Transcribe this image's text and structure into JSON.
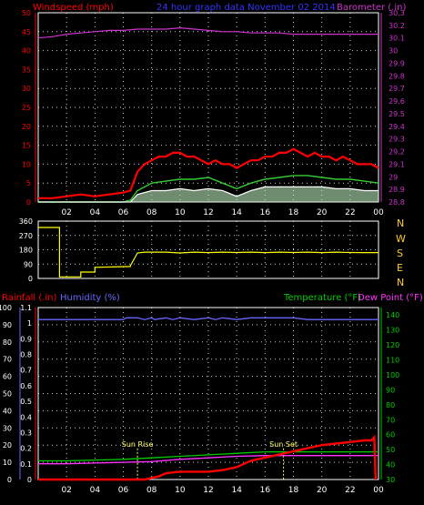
{
  "colors": {
    "background": "#000000",
    "frame": "#ffffff",
    "grid": "#ffffff",
    "axis_text": "#ffffff",
    "windspeed": "#ff0000",
    "gust_avg": "#33cc33",
    "wind_min": "#ffffff",
    "wind_fill": "#ccffcc",
    "barometer": "#cc33cc",
    "direction": "#ffff00",
    "rainfall": "#ff0000",
    "humidity": "#6666ff",
    "temperature": "#00cc00",
    "dewpoint": "#ff33ff",
    "sun_marker": "#ffff66",
    "compass": "#ffcc33"
  },
  "header": {
    "left_label": "Windspeed (mph)",
    "center_label": "24 hour graph data  November 02 2014",
    "right_label": "Barometer (.in)"
  },
  "compass": [
    "N",
    "W",
    "S",
    "E",
    "N"
  ],
  "bottom_header": {
    "rain_label": "Rainfall (.in)",
    "humidity_label": "Humidity (%)",
    "temp_label": "Temperature (°F)",
    "dew_label": "Dew Point (°F)"
  },
  "x_ticks": [
    "02",
    "04",
    "06",
    "08",
    "10",
    "12",
    "14",
    "16",
    "18",
    "20",
    "22",
    "00"
  ],
  "annotations": {
    "sunrise": "Sun Rise",
    "sunset": "Sun Set"
  },
  "chart_data": [
    {
      "type": "line",
      "panel": "wind_barometer",
      "x_unit": "hour",
      "xlim": [
        0,
        24
      ],
      "ylim": [
        0,
        50
      ],
      "yticks": [
        "0",
        "5",
        "10",
        "15",
        "20",
        "25",
        "30",
        "35",
        "40",
        "45",
        "50"
      ],
      "ylim_right": [
        28.8,
        30.3
      ],
      "yticks_right": [
        "28.8",
        "28.9",
        "29",
        "29.1",
        "29.2",
        "29.3",
        "29.4",
        "29.5",
        "29.6",
        "29.7",
        "29.8",
        "29.9",
        "30",
        "30.1",
        "30.2",
        "30.3"
      ],
      "grid": true,
      "series": [
        {
          "name": "Windspeed (mph)",
          "color_key": "windspeed",
          "x": [
            0,
            1,
            2,
            3,
            4,
            5,
            6,
            6.5,
            7,
            7.5,
            8,
            8.5,
            9,
            9.5,
            10,
            10.5,
            11,
            11.5,
            12,
            12.5,
            13,
            13.5,
            14,
            14.5,
            15,
            15.5,
            16,
            16.5,
            17,
            17.5,
            18,
            18.5,
            19,
            19.5,
            20,
            20.5,
            21,
            21.5,
            22,
            22.5,
            23,
            23.5,
            24
          ],
          "values": [
            1,
            1,
            1.5,
            2,
            1.5,
            2,
            2.5,
            3,
            8,
            10,
            11,
            12,
            12,
            13,
            13,
            12,
            12,
            11,
            10,
            11,
            10,
            10,
            9,
            10,
            11,
            11,
            12,
            12,
            13,
            13,
            14,
            13,
            12,
            13,
            12,
            12,
            11,
            12,
            11,
            10,
            10,
            10,
            9
          ]
        },
        {
          "name": "Wind Gust Avg",
          "color_key": "gust_avg",
          "x": [
            0,
            6,
            6.5,
            7,
            7.5,
            8,
            9,
            10,
            11,
            12,
            13,
            14,
            15,
            16,
            17,
            18,
            19,
            20,
            21,
            22,
            23,
            24
          ],
          "values": [
            0,
            0,
            0.5,
            3,
            4,
            5,
            5.5,
            6,
            6,
            6.5,
            5,
            3.5,
            5,
            6,
            6.5,
            7,
            7,
            6.5,
            6,
            6,
            5.5,
            5
          ]
        },
        {
          "name": "Wind Min",
          "color_key": "wind_min",
          "x": [
            0,
            6.5,
            7,
            8,
            9,
            10,
            11,
            12,
            13,
            14,
            15,
            16,
            17,
            18,
            19,
            20,
            21,
            22,
            23,
            24
          ],
          "values": [
            0,
            0,
            2,
            3,
            3,
            3.5,
            3,
            3.5,
            3,
            1.5,
            3,
            4,
            4,
            4,
            4,
            4,
            3.5,
            3.5,
            3,
            3
          ]
        },
        {
          "name": "Barometer (.in)",
          "color_key": "barometer",
          "axis": "right",
          "x": [
            0,
            1,
            2,
            3,
            4,
            5,
            6,
            7,
            8,
            9,
            10,
            11,
            12,
            13,
            14,
            15,
            16,
            17,
            18,
            19,
            20,
            21,
            22,
            23,
            24
          ],
          "values": [
            30.1,
            30.11,
            30.13,
            30.14,
            30.15,
            30.16,
            30.16,
            30.17,
            30.17,
            30.17,
            30.18,
            30.17,
            30.16,
            30.15,
            30.15,
            30.14,
            30.14,
            30.14,
            30.13,
            30.13,
            30.13,
            30.13,
            30.13,
            30.13,
            30.13
          ]
        }
      ]
    },
    {
      "type": "line",
      "panel": "wind_direction",
      "x_unit": "hour",
      "xlim": [
        0,
        24
      ],
      "ylim": [
        0,
        360
      ],
      "yticks": [
        "0",
        "90",
        "180",
        "270",
        "360"
      ],
      "grid": true,
      "series": [
        {
          "name": "Wind Direction",
          "color_key": "direction",
          "x": [
            0,
            1.5,
            1.5,
            3,
            3,
            4,
            4,
            6.5,
            6.5,
            7,
            7.5,
            9,
            10,
            11,
            12,
            13,
            14,
            15,
            16,
            17,
            18,
            19,
            20,
            21,
            22,
            23,
            24
          ],
          "values": [
            320,
            320,
            10,
            10,
            40,
            40,
            70,
            75,
            80,
            160,
            165,
            165,
            160,
            165,
            162,
            165,
            163,
            165,
            162,
            165,
            163,
            165,
            162,
            165,
            163,
            162,
            162
          ]
        }
      ]
    },
    {
      "type": "line",
      "panel": "rain_humidity_temperature",
      "x_unit": "hour",
      "xlim": [
        0,
        24
      ],
      "ylim": [
        0,
        100
      ],
      "yticks": [
        "0",
        "10",
        "20",
        "30",
        "40",
        "50",
        "60",
        "70",
        "80",
        "90",
        "100"
      ],
      "ylim_rain": [
        0,
        1.1
      ],
      "yticks_rain": [
        "0",
        "0.1",
        "0.2",
        "0.3",
        "0.4",
        "0.5",
        "0.6",
        "0.7",
        "0.8",
        "0.9",
        "1",
        "1.1"
      ],
      "ylim_right": [
        30,
        145
      ],
      "yticks_right": [
        "30",
        "40",
        "50",
        "60",
        "70",
        "80",
        "90",
        "100",
        "110",
        "120",
        "130",
        "140"
      ],
      "grid": true,
      "series": [
        {
          "name": "Humidity (%)",
          "color_key": "humidity",
          "x": [
            0,
            6,
            6.2,
            7,
            7.5,
            8,
            8.2,
            9,
            9.5,
            10,
            11,
            12,
            12.5,
            13,
            14,
            15,
            16,
            16.5,
            17,
            18,
            19,
            24
          ],
          "values": [
            93,
            93,
            94,
            94,
            93,
            94,
            93,
            94,
            93,
            94,
            93,
            94,
            93,
            94,
            93,
            94,
            94,
            94,
            94,
            94,
            93,
            93
          ]
        },
        {
          "name": "Rainfall (.in)",
          "color_key": "rainfall",
          "axis": "rain",
          "x": [
            0,
            7.5,
            8,
            8.5,
            9,
            10,
            11,
            12,
            13,
            14,
            14.5,
            15,
            16,
            16.5,
            17,
            18,
            19,
            20,
            21,
            22,
            23,
            23.5,
            23.7,
            23.8
          ],
          "values": [
            0,
            0,
            0.01,
            0.02,
            0.04,
            0.05,
            0.05,
            0.05,
            0.06,
            0.08,
            0.1,
            0.12,
            0.14,
            0.15,
            0.16,
            0.18,
            0.2,
            0.22,
            0.23,
            0.24,
            0.25,
            0.25,
            0.27,
            0.0
          ]
        },
        {
          "name": "Temperature (°F)",
          "color_key": "temperature",
          "axis": "right",
          "x": [
            0,
            2,
            4,
            6,
            8,
            10,
            12,
            14,
            16,
            18,
            20,
            22,
            24
          ],
          "values": [
            42.5,
            42.5,
            43,
            43.5,
            44.5,
            45.5,
            46.5,
            47.5,
            48.5,
            48.5,
            48.5,
            48.5,
            48.5
          ]
        },
        {
          "name": "Dew Point (°F)",
          "color_key": "dewpoint",
          "axis": "right",
          "x": [
            0,
            2,
            4,
            6,
            8,
            10,
            12,
            14,
            16,
            18,
            20,
            22,
            24
          ],
          "values": [
            40.5,
            40.5,
            41,
            41.5,
            42,
            43.5,
            44.5,
            45.5,
            46,
            46,
            46,
            46,
            46
          ]
        }
      ],
      "markers": [
        {
          "label_key": "sunrise",
          "x": 7.0
        },
        {
          "label_key": "sunset",
          "x": 17.3
        }
      ]
    }
  ]
}
